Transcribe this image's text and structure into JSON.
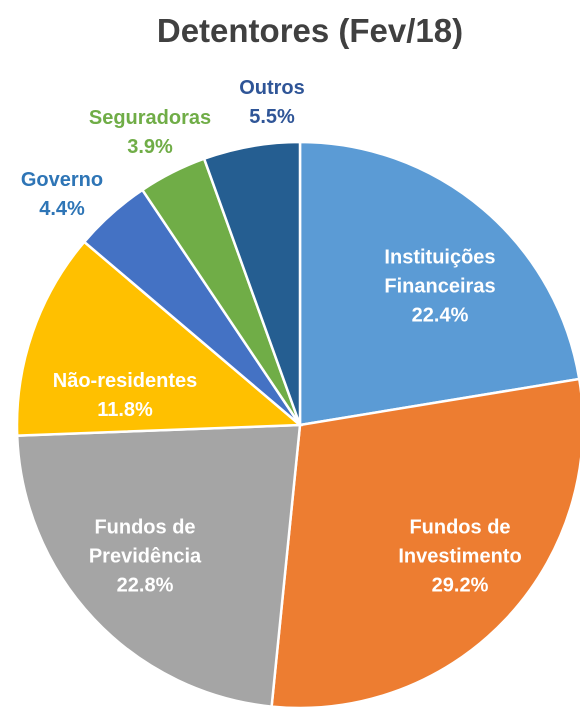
{
  "chart_data": {
    "type": "pie",
    "title": "Detentores (Fev/18)",
    "categories": [
      "Instituições Financeiras",
      "Fundos de Investimento",
      "Fundos de Previdência",
      "Não-residentes",
      "Governo",
      "Seguradoras",
      "Outros"
    ],
    "values": [
      22.4,
      29.2,
      22.8,
      11.8,
      4.4,
      3.9,
      5.5
    ],
    "value_labels": [
      "22.4%",
      "29.2%",
      "22.8%",
      "11.8%",
      "4.4%",
      "3.9%",
      "5.5%"
    ],
    "colors": [
      "#5b9bd5",
      "#ed7d31",
      "#a5a5a5",
      "#ffc000",
      "#4472c4",
      "#70ad47",
      "#255e91"
    ]
  }
}
